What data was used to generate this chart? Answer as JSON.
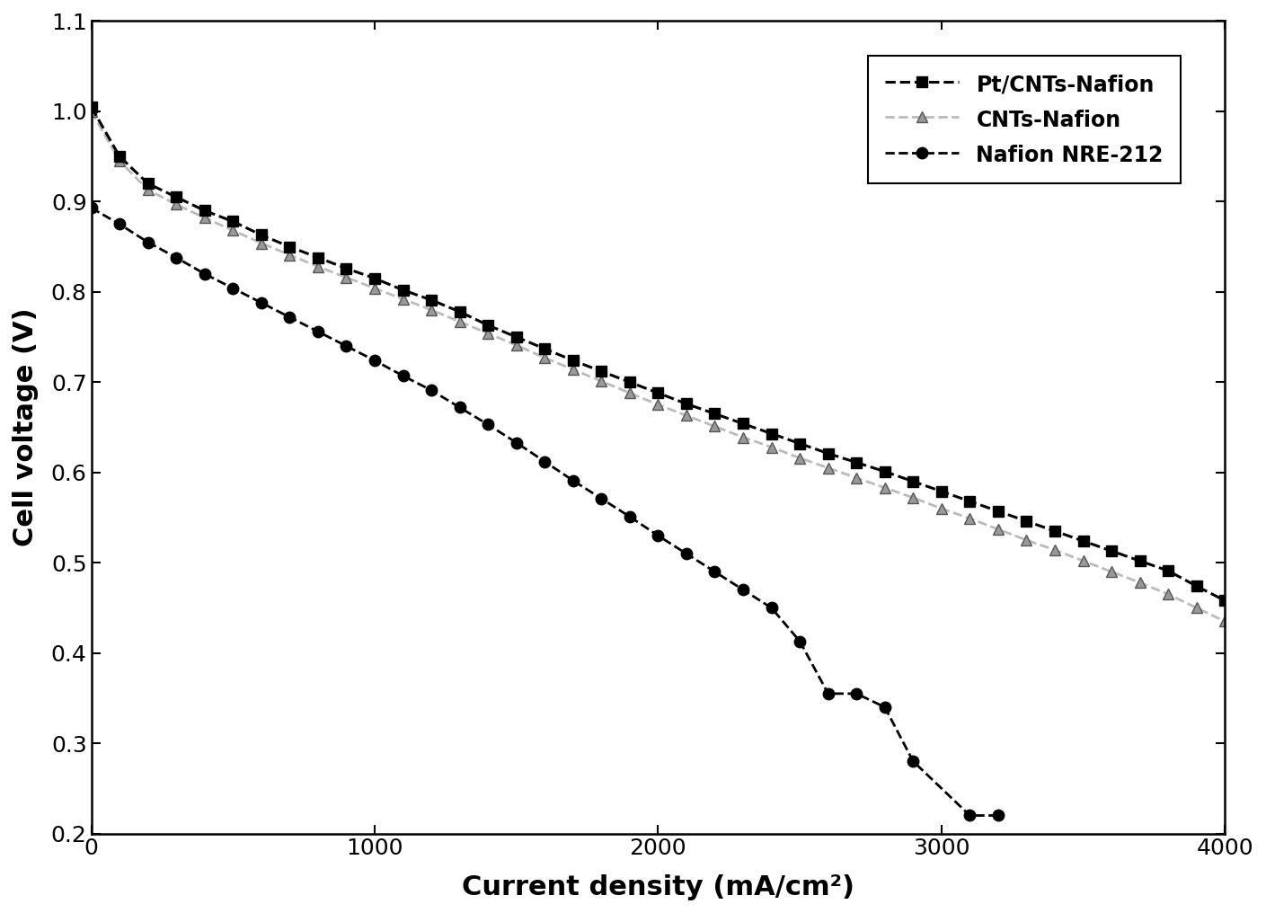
{
  "series": [
    {
      "label": "Pt/CNTs-Nafion",
      "color": "#000000",
      "linestyle": "--",
      "marker": "s",
      "markersize": 8,
      "linewidth": 2.2,
      "markevery": 1,
      "x": [
        0,
        100,
        200,
        300,
        400,
        500,
        600,
        700,
        800,
        900,
        1000,
        1100,
        1200,
        1300,
        1400,
        1500,
        1600,
        1700,
        1800,
        1900,
        2000,
        2100,
        2200,
        2300,
        2400,
        2500,
        2600,
        2700,
        2800,
        2900,
        3000,
        3100,
        3200,
        3300,
        3400,
        3500,
        3600,
        3700,
        3800,
        3900,
        4000
      ],
      "y": [
        1.005,
        0.95,
        0.92,
        0.905,
        0.89,
        0.878,
        0.863,
        0.85,
        0.838,
        0.826,
        0.815,
        0.802,
        0.791,
        0.778,
        0.763,
        0.75,
        0.737,
        0.724,
        0.712,
        0.7,
        0.688,
        0.676,
        0.665,
        0.654,
        0.643,
        0.632,
        0.621,
        0.611,
        0.601,
        0.59,
        0.579,
        0.568,
        0.557,
        0.546,
        0.535,
        0.524,
        0.513,
        0.502,
        0.491,
        0.474,
        0.458
      ]
    },
    {
      "label": "CNTs-Nafion",
      "color": "#aaaaaa",
      "linestyle": "--",
      "marker": "^",
      "markersize": 8,
      "linewidth": 2.0,
      "markevery": 1,
      "x": [
        0,
        100,
        200,
        300,
        400,
        500,
        600,
        700,
        800,
        900,
        1000,
        1100,
        1200,
        1300,
        1400,
        1500,
        1600,
        1700,
        1800,
        1900,
        2000,
        2100,
        2200,
        2300,
        2400,
        2500,
        2600,
        2700,
        2800,
        2900,
        3000,
        3100,
        3200,
        3300,
        3400,
        3500,
        3600,
        3700,
        3800,
        3900,
        4000
      ],
      "y": [
        1.0,
        0.945,
        0.913,
        0.897,
        0.882,
        0.868,
        0.854,
        0.841,
        0.828,
        0.816,
        0.804,
        0.792,
        0.78,
        0.767,
        0.754,
        0.741,
        0.727,
        0.714,
        0.701,
        0.688,
        0.675,
        0.663,
        0.651,
        0.639,
        0.628,
        0.616,
        0.605,
        0.594,
        0.583,
        0.572,
        0.56,
        0.549,
        0.537,
        0.525,
        0.514,
        0.502,
        0.49,
        0.478,
        0.465,
        0.45,
        0.435
      ]
    },
    {
      "label": "Nafion NRE-212",
      "color": "#000000",
      "linestyle": "--",
      "marker": "o",
      "markersize": 9,
      "linewidth": 2.0,
      "markevery": 1,
      "x": [
        0,
        100,
        200,
        300,
        400,
        500,
        600,
        700,
        800,
        900,
        1000,
        1100,
        1200,
        1300,
        1400,
        1500,
        1600,
        1700,
        1800,
        1900,
        2000,
        2100,
        2200,
        2300,
        2400,
        2500,
        2600,
        2700,
        2800,
        2900,
        3100,
        3200
      ],
      "y": [
        0.893,
        0.875,
        0.855,
        0.838,
        0.82,
        0.804,
        0.788,
        0.772,
        0.756,
        0.74,
        0.724,
        0.707,
        0.691,
        0.672,
        0.653,
        0.633,
        0.612,
        0.591,
        0.571,
        0.551,
        0.53,
        0.51,
        0.49,
        0.47,
        0.45,
        0.413,
        0.355,
        0.355,
        0.34,
        0.28,
        0.22,
        0.22
      ]
    }
  ],
  "xlabel": "Current density (mA/cm²)",
  "ylabel": "Cell voltage (V)",
  "xlim": [
    0,
    4000
  ],
  "ylim": [
    0.2,
    1.1
  ],
  "xticks": [
    0,
    1000,
    2000,
    3000,
    4000
  ],
  "yticks": [
    0.2,
    0.3,
    0.4,
    0.5,
    0.6,
    0.7,
    0.8,
    0.9,
    1.0,
    1.1
  ],
  "background_color": "#ffffff",
  "tick_fontsize": 18,
  "label_fontsize": 22,
  "legend_fontsize": 17
}
